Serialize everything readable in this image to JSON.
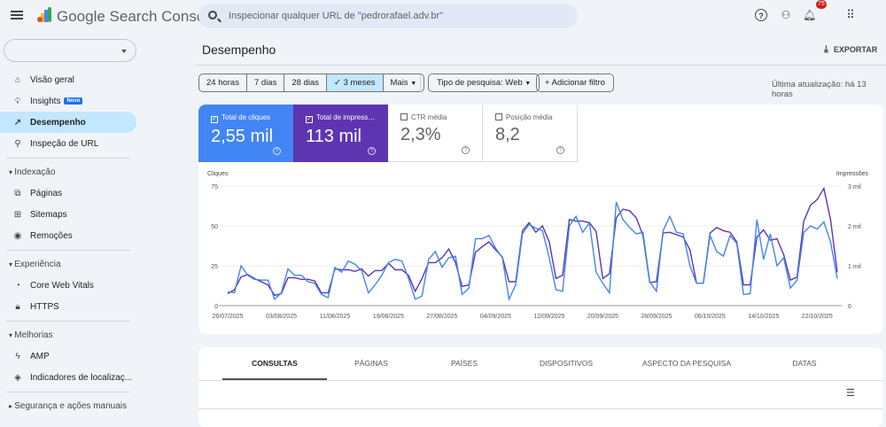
{
  "header": {
    "brand": "Google Search Console",
    "search_placeholder": "Inspecionar qualquer URL de \"pedrorafael.adv.br\"",
    "notifications": "75"
  },
  "sidebar": {
    "items": [
      {
        "label": "Visão geral",
        "icon": "home-icon",
        "glyph": "⌂"
      },
      {
        "label": "Insights",
        "icon": "lightbulb-icon",
        "glyph": "♀",
        "badge": "Novo"
      },
      {
        "label": "Desempenho",
        "icon": "trending-icon",
        "glyph": "↗"
      },
      {
        "label": "Inspeção de URL",
        "icon": "search-icon",
        "glyph": "⚲"
      }
    ],
    "sections": [
      {
        "title": "Indexação",
        "items": [
          {
            "label": "Páginas",
            "glyph": "⧉"
          },
          {
            "label": "Sitemaps",
            "glyph": "⊞"
          },
          {
            "label": "Remoções",
            "glyph": "◉"
          }
        ]
      },
      {
        "title": "Experiência",
        "items": [
          {
            "label": "Core Web Vitals",
            "glyph": "◔"
          },
          {
            "label": "HTTPS",
            "glyph": "🔒"
          }
        ]
      },
      {
        "title": "Melhorias",
        "items": [
          {
            "label": "AMP",
            "glyph": "ϟ"
          },
          {
            "label": "Indicadores de localizaç...",
            "glyph": "◈"
          }
        ]
      },
      {
        "title": "Segurança e ações manuais"
      }
    ]
  },
  "page": {
    "title": "Desempenho",
    "export": "EXPORTAR",
    "last_update": "Última atualização: há 13 horas"
  },
  "filters": {
    "ranges": [
      "24 horas",
      "7 dias",
      "28 dias",
      "3 meses",
      "Mais"
    ],
    "selected": "3 meses",
    "search_type": "Tipo de pesquisa: Web",
    "add_filter": "Adicionar filtro"
  },
  "metrics": [
    {
      "label": "Total de cliques",
      "value": "2,55 mil",
      "checked": true,
      "color": "#4285f4"
    },
    {
      "label": "Total de impressões",
      "value": "113 mil",
      "checked": true,
      "color": "#5e35b1"
    },
    {
      "label": "CTR média",
      "value": "2,3%",
      "checked": false
    },
    {
      "label": "Posição média",
      "value": "8,2",
      "checked": false
    }
  ],
  "chart_data": {
    "type": "line",
    "left_axis_label": "Cliques",
    "right_axis_label": "Impressões",
    "left_ticks": [
      "0",
      "25",
      "50",
      "75"
    ],
    "right_ticks": [
      "0",
      "1 mil",
      "2 mil",
      "3 mil"
    ],
    "ylim_left": [
      0,
      75
    ],
    "ylim_right": [
      0,
      3000
    ],
    "x_start": "26/07/2025",
    "x_end": "25/10/2025",
    "x_tick_labels": [
      "26/07/2025",
      "03/08/2025",
      "11/08/2025",
      "19/08/2025",
      "27/08/2025",
      "04/09/2025",
      "12/09/2025",
      "20/09/2025",
      "28/09/2025",
      "06/10/2025",
      "14/10/2025",
      "22/10/2025"
    ],
    "grid": true,
    "series": [
      {
        "name": "Cliques",
        "color": "#4285f4",
        "axis": "left",
        "values": [
          8.7,
          8,
          25,
          19,
          16.5,
          16,
          16,
          4,
          8,
          23,
          19,
          19,
          15,
          14,
          7,
          5,
          24,
          21,
          28,
          26,
          22,
          8,
          13,
          19,
          27,
          29,
          28,
          17,
          4,
          6,
          29,
          34,
          24,
          30,
          31,
          7,
          11,
          42,
          42,
          44,
          36,
          30,
          4,
          13,
          45,
          51,
          48.5,
          47,
          30,
          10,
          9,
          50,
          56,
          46,
          52,
          21,
          14,
          8,
          65,
          54,
          49,
          45,
          46,
          15,
          9,
          47,
          56,
          46,
          45,
          25,
          14,
          14,
          44,
          34,
          31,
          44,
          39,
          7,
          7.5,
          54,
          29,
          45,
          25,
          30,
          11,
          16,
          46,
          50,
          48,
          52.5,
          40,
          17
        ]
      },
      {
        "name": "Impressões",
        "color": "#5e35b1",
        "axis": "right",
        "values": [
          300,
          400,
          720,
          780,
          680,
          600,
          520,
          260,
          300,
          700,
          700,
          660,
          660,
          620,
          320,
          320,
          920,
          900,
          900,
          860,
          920,
          740,
          880,
          880,
          1060,
          900,
          900,
          760,
          360,
          680,
          1080,
          1080,
          1200,
          1420,
          1080,
          480,
          520,
          1340,
          1480,
          1600,
          1400,
          1220,
          600,
          600,
          1880,
          2080,
          1840,
          2000,
          1600,
          680,
          760,
          2160,
          2120,
          2120,
          2080,
          1860,
          680,
          800,
          2200,
          2420,
          2380,
          2200,
          1760,
          580,
          600,
          1820,
          1840,
          1780,
          1720,
          1400,
          560,
          560,
          1820,
          1960,
          1880,
          1840,
          1600,
          520,
          520,
          1720,
          1900,
          1640,
          1680,
          1280,
          640,
          720,
          2120,
          2520,
          2660,
          2940,
          2160,
          840
        ]
      }
    ]
  },
  "table": {
    "tabs": [
      "CONSULTAS",
      "PÁGINAS",
      "PAÍSES",
      "DISPOSITIVOS",
      "ASPECTO DA PESQUISA",
      "DATAS"
    ],
    "active": "CONSULTAS"
  }
}
